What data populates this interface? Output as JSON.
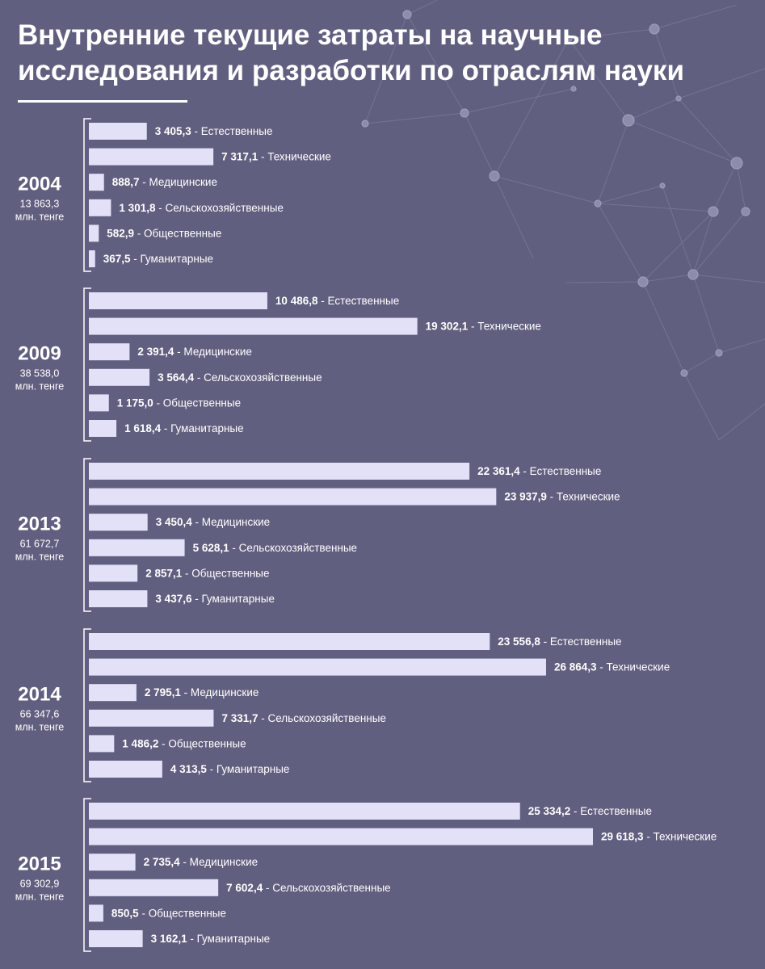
{
  "title": "Внутренние текущие затраты на научные исследования и разработки по отраслям науки",
  "colors": {
    "background": "#605f7f",
    "bar": "#e2e1f8",
    "text": "#ffffff"
  },
  "chart_data": {
    "type": "bar",
    "orientation": "horizontal",
    "unit": "млн. тенге",
    "xlim": [
      0,
      29618.3
    ],
    "groups": [
      {
        "year": "2004",
        "total": "13 863,3",
        "unit": "млн. тенге",
        "bars": [
          {
            "value": 3405.3,
            "value_label": "3 405,3",
            "category": "Естественные"
          },
          {
            "value": 7317.1,
            "value_label": "7 317,1",
            "category": "Технические"
          },
          {
            "value": 888.7,
            "value_label": "888,7",
            "category": "Медицинские"
          },
          {
            "value": 1301.8,
            "value_label": "1 301,8",
            "category": "Сельскохозяйственные"
          },
          {
            "value": 582.9,
            "value_label": "582,9",
            "category": "Общественные"
          },
          {
            "value": 367.5,
            "value_label": "367,5",
            "category": "Гуманитарные"
          }
        ]
      },
      {
        "year": "2009",
        "total": "38 538,0",
        "unit": "млн. тенге",
        "bars": [
          {
            "value": 10486.8,
            "value_label": "10 486,8",
            "category": "Естественные"
          },
          {
            "value": 19302.1,
            "value_label": "19 302,1",
            "category": "Технические"
          },
          {
            "value": 2391.4,
            "value_label": "2 391,4",
            "category": "Медицинские"
          },
          {
            "value": 3564.4,
            "value_label": "3 564,4",
            "category": "Сельскохозяйственные"
          },
          {
            "value": 1175.0,
            "value_label": "1 175,0",
            "category": "Общественные"
          },
          {
            "value": 1618.4,
            "value_label": "1 618,4",
            "category": "Гуманитарные"
          }
        ]
      },
      {
        "year": "2013",
        "total": "61 672,7",
        "unit": "млн. тенге",
        "bars": [
          {
            "value": 22361.4,
            "value_label": "22 361,4",
            "category": "Естественные"
          },
          {
            "value": 23937.9,
            "value_label": "23 937,9",
            "category": "Технические"
          },
          {
            "value": 3450.4,
            "value_label": "3 450,4",
            "category": "Медицинские"
          },
          {
            "value": 5628.1,
            "value_label": "5 628,1",
            "category": "Сельскохозяйственные"
          },
          {
            "value": 2857.1,
            "value_label": "2 857,1",
            "category": "Общественные"
          },
          {
            "value": 3437.6,
            "value_label": "3 437,6",
            "category": "Гуманитарные"
          }
        ]
      },
      {
        "year": "2014",
        "total": "66 347,6",
        "unit": "млн. тенге",
        "bars": [
          {
            "value": 23556.8,
            "value_label": "23 556,8",
            "category": "Естественные"
          },
          {
            "value": 26864.3,
            "value_label": "26 864,3",
            "category": "Технические"
          },
          {
            "value": 2795.1,
            "value_label": "2 795,1",
            "category": "Медицинские"
          },
          {
            "value": 7331.7,
            "value_label": "7 331,7",
            "category": "Сельскохозяйственные"
          },
          {
            "value": 1486.2,
            "value_label": "1 486,2",
            "category": "Общественные"
          },
          {
            "value": 4313.5,
            "value_label": "4 313,5",
            "category": "Гуманитарные"
          }
        ]
      },
      {
        "year": "2015",
        "total": "69 302,9",
        "unit": "млн. тенге",
        "bars": [
          {
            "value": 25334.2,
            "value_label": "25 334,2",
            "category": "Естественные"
          },
          {
            "value": 29618.3,
            "value_label": "29 618,3",
            "category": "Технические"
          },
          {
            "value": 2735.4,
            "value_label": "2 735,4",
            "category": "Медицинские"
          },
          {
            "value": 7602.4,
            "value_label": "7 602,4",
            "category": "Сельскохозяйственные"
          },
          {
            "value": 850.5,
            "value_label": "850,5",
            "category": "Общественные"
          },
          {
            "value": 3162.1,
            "value_label": "3 162,1",
            "category": "Гуманитарные"
          }
        ]
      }
    ]
  }
}
